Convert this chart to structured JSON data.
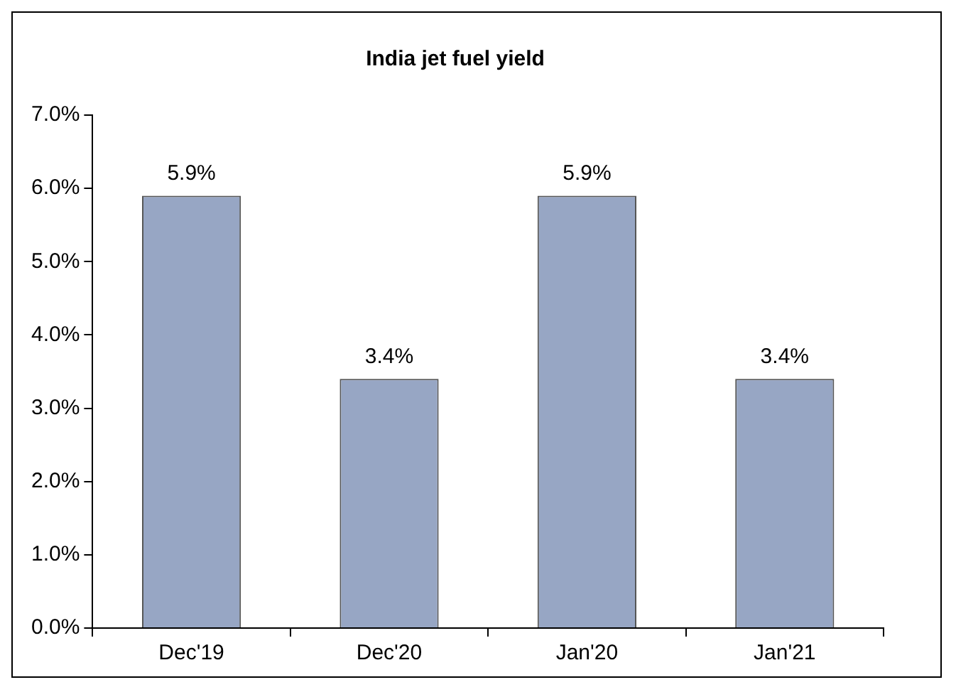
{
  "chart_data": {
    "type": "bar",
    "title": "India jet fuel yield",
    "categories": [
      "Dec'19",
      "Dec'20",
      "Jan'20",
      "Jan'21"
    ],
    "values": [
      5.9,
      3.4,
      5.9,
      3.4
    ],
    "value_labels": [
      "5.9%",
      "3.4%",
      "5.9%",
      "3.4%"
    ],
    "color": "#97a6c4",
    "ylim": [
      0,
      7
    ],
    "yticks": [
      {
        "value": 0,
        "label": "0.0%"
      },
      {
        "value": 1,
        "label": "1.0%"
      },
      {
        "value": 2,
        "label": "2.0%"
      },
      {
        "value": 3,
        "label": "3.0%"
      },
      {
        "value": 4,
        "label": "4.0%"
      },
      {
        "value": 5,
        "label": "5.0%"
      },
      {
        "value": 6,
        "label": "6.0%"
      },
      {
        "value": 7,
        "label": "7.0%"
      }
    ],
    "grid": false,
    "legend": false
  }
}
